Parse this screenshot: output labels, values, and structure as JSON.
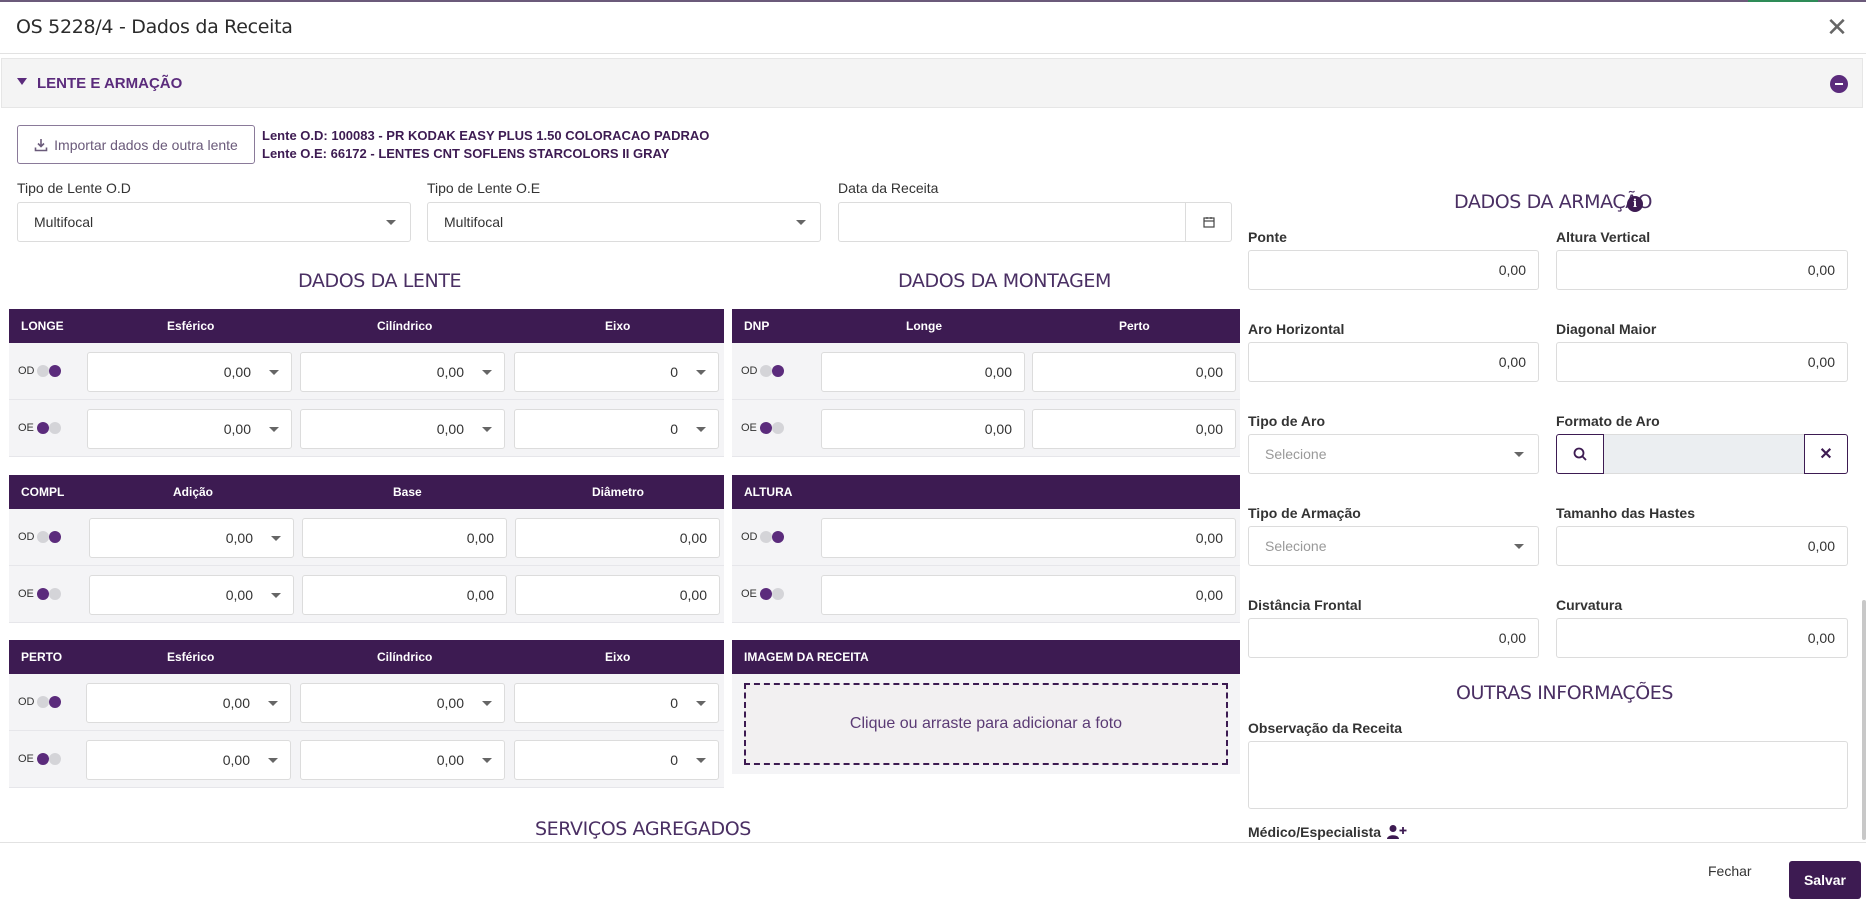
{
  "modal": {
    "title": "OS 5228/4 - Dados da Receita",
    "close_icon": "close-icon"
  },
  "section": {
    "title": "LENTE E ARMAÇÃO"
  },
  "import_button": {
    "label": "Importar dados de outra lente"
  },
  "lens_info": {
    "od": "Lente O.D: 100083 - PR KODAK EASY PLUS 1.50 COLORACAO PADRAO",
    "oe": "Lente O.E: 66172 - LENTES CNT SOFLENS STARCOLORS II GRAY"
  },
  "fields": {
    "tipo_od": {
      "label": "Tipo de Lente O.D",
      "value": "Multifocal"
    },
    "tipo_oe": {
      "label": "Tipo de Lente O.E",
      "value": "Multifocal"
    },
    "data_receita": {
      "label": "Data da Receita",
      "value": ""
    }
  },
  "dados_lente": {
    "title": "DADOS DA LENTE",
    "longe": {
      "headers": [
        "LONGE",
        "Esférico",
        "Cilíndrico",
        "Eixo"
      ],
      "od": [
        "0,00",
        "0,00",
        "0"
      ],
      "oe": [
        "0,00",
        "0,00",
        "0"
      ]
    },
    "compl": {
      "headers": [
        "COMPL",
        "Adição",
        "Base",
        "Diâmetro"
      ],
      "od": [
        "0,00",
        "0,00",
        "0,00"
      ],
      "oe": [
        "0,00",
        "0,00",
        "0,00"
      ]
    },
    "perto": {
      "headers": [
        "PERTO",
        "Esférico",
        "Cilíndrico",
        "Eixo"
      ],
      "od": [
        "0,00",
        "0,00",
        "0"
      ],
      "oe": [
        "0,00",
        "0,00",
        "0"
      ]
    }
  },
  "dados_montagem": {
    "title": "DADOS DA MONTAGEM",
    "dnp": {
      "headers": [
        "DNP",
        "Longe",
        "Perto"
      ],
      "od": [
        "0,00",
        "0,00"
      ],
      "oe": [
        "0,00",
        "0,00"
      ]
    },
    "altura": {
      "header": "ALTURA",
      "od": "0,00",
      "oe": "0,00"
    },
    "imagem": {
      "header": "IMAGEM DA RECEITA",
      "dropzone": "Clique ou arraste para adicionar a foto"
    }
  },
  "row_labels": {
    "od": "OD",
    "oe": "OE"
  },
  "servicos": {
    "title": "SERVIÇOS AGREGADOS"
  },
  "dados_armacao": {
    "title": "DADOS DA ARMAÇÃO",
    "ponte": {
      "label": "Ponte",
      "value": "0,00"
    },
    "altura_vertical": {
      "label": "Altura Vertical",
      "value": "0,00"
    },
    "aro_horizontal": {
      "label": "Aro Horizontal",
      "value": "0,00"
    },
    "diagonal_maior": {
      "label": "Diagonal Maior",
      "value": "0,00"
    },
    "tipo_aro": {
      "label": "Tipo de Aro",
      "placeholder": "Selecione"
    },
    "formato_aro": {
      "label": "Formato de Aro"
    },
    "tipo_armacao": {
      "label": "Tipo de Armação",
      "placeholder": "Selecione"
    },
    "tamanho_hastes": {
      "label": "Tamanho das Hastes",
      "value": "0,00"
    },
    "distancia_frontal": {
      "label": "Distância Frontal",
      "value": "0,00"
    },
    "curvatura": {
      "label": "Curvatura",
      "value": "0,00"
    }
  },
  "outras": {
    "title": "OUTRAS INFORMAÇÕES",
    "observacao": {
      "label": "Observação da Receita",
      "value": ""
    },
    "medico": {
      "label": "Médico/Especialista"
    }
  },
  "footer": {
    "fechar": "Fechar",
    "salvar": "Salvar"
  },
  "colors": {
    "primary": "#3d1b52",
    "accent": "#5b2b7c",
    "toggle_off": "#d4d4d8"
  }
}
